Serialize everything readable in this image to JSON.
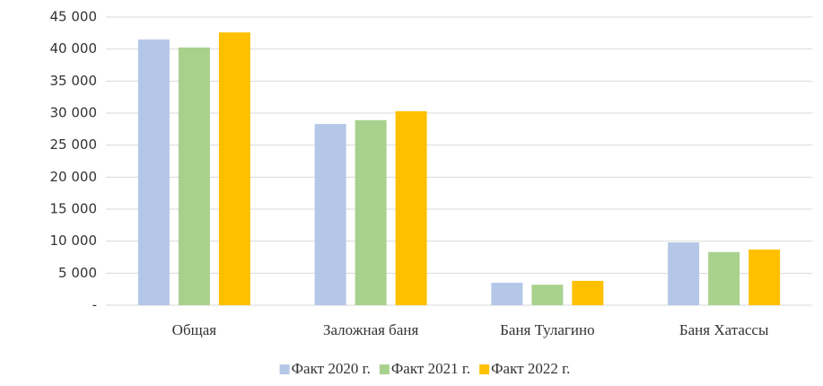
{
  "chart_data": {
    "type": "bar",
    "categories": [
      "Общая",
      "Заложная баня",
      "Баня Тулагино",
      "Баня Хатассы"
    ],
    "series": [
      {
        "name": "Факт 2020 г.",
        "color": "#b4c7e7",
        "values": [
          41500,
          28300,
          3500,
          9800
        ]
      },
      {
        "name": "Факт 2021 г.",
        "color": "#a9d18e",
        "values": [
          40250,
          28900,
          3200,
          8300
        ]
      },
      {
        "name": "Факт 2022 г.",
        "color": "#ffc000",
        "values": [
          42600,
          30300,
          3800,
          8700
        ]
      }
    ],
    "ylim": [
      0,
      45000
    ],
    "yticks": [
      {
        "value": 0,
        "label": "-"
      },
      {
        "value": 5000,
        "label": "5 000"
      },
      {
        "value": 10000,
        "label": "10 000"
      },
      {
        "value": 15000,
        "label": "15 000"
      },
      {
        "value": 20000,
        "label": "20 000"
      },
      {
        "value": 25000,
        "label": "25 000"
      },
      {
        "value": 30000,
        "label": "30 000"
      },
      {
        "value": 35000,
        "label": "35 000"
      },
      {
        "value": 40000,
        "label": "40 000"
      },
      {
        "value": 45000,
        "label": "45 000"
      }
    ],
    "grid": true,
    "legend": "bottom"
  }
}
